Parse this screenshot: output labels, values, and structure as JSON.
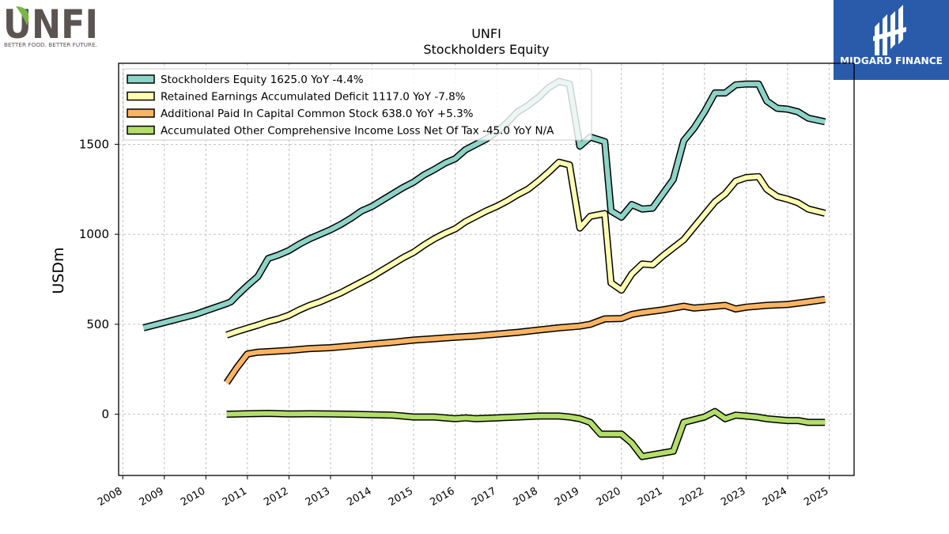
{
  "brand": {
    "left_logo_name": "UNFI",
    "left_logo_tagline": "BETTER FOOD. BETTER FUTURE.",
    "right_logo_name": "MIDGARD FINANCE",
    "colors": {
      "unfi_gray": "#5b5452",
      "unfi_green": "#7ab648",
      "midgard_blue": "#2a5bab"
    }
  },
  "chart_data": {
    "type": "line",
    "title": "UNFI",
    "subtitle": "Stockholders  Equity",
    "xlabel": "",
    "ylabel": "USDm",
    "xlim": [
      2007.9,
      2025.6
    ],
    "ylim": [
      -340,
      1950
    ],
    "x_ticks": [
      2008,
      2009,
      2010,
      2011,
      2012,
      2013,
      2014,
      2015,
      2016,
      2017,
      2018,
      2019,
      2020,
      2021,
      2022,
      2023,
      2024,
      2025
    ],
    "y_ticks": [
      0,
      500,
      1000,
      1500
    ],
    "grid": true,
    "legend_position": "top-left",
    "series": [
      {
        "name": "Stockholders Equity",
        "legend": "Stockholders Equity  1625.0 YoY -4.4%",
        "color": "#8dd3c7",
        "points": [
          [
            2008.5,
            480
          ],
          [
            2009.0,
            510
          ],
          [
            2009.5,
            540
          ],
          [
            2009.75,
            555
          ],
          [
            2010.0,
            575
          ],
          [
            2010.5,
            615
          ],
          [
            2010.6,
            625
          ],
          [
            2010.75,
            660
          ],
          [
            2011.0,
            715
          ],
          [
            2011.25,
            765
          ],
          [
            2011.5,
            865
          ],
          [
            2011.75,
            885
          ],
          [
            2012.0,
            910
          ],
          [
            2012.25,
            945
          ],
          [
            2012.5,
            975
          ],
          [
            2012.75,
            1000
          ],
          [
            2013.0,
            1025
          ],
          [
            2013.25,
            1055
          ],
          [
            2013.5,
            1090
          ],
          [
            2013.75,
            1130
          ],
          [
            2014.0,
            1155
          ],
          [
            2014.25,
            1190
          ],
          [
            2014.5,
            1225
          ],
          [
            2014.75,
            1260
          ],
          [
            2015.0,
            1290
          ],
          [
            2015.25,
            1330
          ],
          [
            2015.5,
            1360
          ],
          [
            2015.75,
            1395
          ],
          [
            2016.0,
            1420
          ],
          [
            2016.25,
            1470
          ],
          [
            2016.5,
            1500
          ],
          [
            2016.75,
            1530
          ],
          [
            2017.0,
            1570
          ],
          [
            2017.25,
            1620
          ],
          [
            2017.5,
            1680
          ],
          [
            2017.75,
            1715
          ],
          [
            2018.0,
            1760
          ],
          [
            2018.25,
            1815
          ],
          [
            2018.5,
            1850
          ],
          [
            2018.75,
            1835
          ],
          [
            2019.0,
            1490
          ],
          [
            2019.25,
            1540
          ],
          [
            2019.6,
            1515
          ],
          [
            2019.75,
            1130
          ],
          [
            2020.0,
            1095
          ],
          [
            2020.25,
            1165
          ],
          [
            2020.5,
            1140
          ],
          [
            2020.75,
            1145
          ],
          [
            2021.0,
            1225
          ],
          [
            2021.25,
            1305
          ],
          [
            2021.5,
            1520
          ],
          [
            2021.75,
            1590
          ],
          [
            2022.0,
            1680
          ],
          [
            2022.25,
            1785
          ],
          [
            2022.5,
            1785
          ],
          [
            2022.75,
            1830
          ],
          [
            2023.0,
            1835
          ],
          [
            2023.3,
            1835
          ],
          [
            2023.5,
            1740
          ],
          [
            2023.75,
            1700
          ],
          [
            2024.0,
            1695
          ],
          [
            2024.25,
            1680
          ],
          [
            2024.5,
            1645
          ],
          [
            2024.9,
            1625
          ]
        ]
      },
      {
        "name": "Retained Earnings Accumulated Deficit",
        "legend": "Retained Earnings Accumulated Deficit  1117.0 YoY -7.8%",
        "color": "#ffffb3",
        "points": [
          [
            2010.5,
            440
          ],
          [
            2010.75,
            460
          ],
          [
            2011.0,
            478
          ],
          [
            2011.25,
            495
          ],
          [
            2011.5,
            515
          ],
          [
            2011.75,
            530
          ],
          [
            2012.0,
            550
          ],
          [
            2012.25,
            580
          ],
          [
            2012.5,
            605
          ],
          [
            2012.75,
            625
          ],
          [
            2013.0,
            650
          ],
          [
            2013.25,
            675
          ],
          [
            2013.5,
            705
          ],
          [
            2013.75,
            735
          ],
          [
            2014.0,
            765
          ],
          [
            2014.25,
            800
          ],
          [
            2014.5,
            835
          ],
          [
            2014.75,
            870
          ],
          [
            2015.0,
            900
          ],
          [
            2015.25,
            940
          ],
          [
            2015.5,
            975
          ],
          [
            2015.75,
            1005
          ],
          [
            2016.0,
            1030
          ],
          [
            2016.25,
            1070
          ],
          [
            2016.5,
            1100
          ],
          [
            2016.75,
            1130
          ],
          [
            2017.0,
            1155
          ],
          [
            2017.25,
            1185
          ],
          [
            2017.5,
            1220
          ],
          [
            2017.75,
            1250
          ],
          [
            2018.0,
            1295
          ],
          [
            2018.25,
            1345
          ],
          [
            2018.5,
            1400
          ],
          [
            2018.75,
            1385
          ],
          [
            2019.0,
            1035
          ],
          [
            2019.25,
            1100
          ],
          [
            2019.6,
            1115
          ],
          [
            2019.75,
            730
          ],
          [
            2020.0,
            690
          ],
          [
            2020.25,
            780
          ],
          [
            2020.5,
            835
          ],
          [
            2020.75,
            830
          ],
          [
            2021.0,
            880
          ],
          [
            2021.25,
            925
          ],
          [
            2021.5,
            970
          ],
          [
            2021.75,
            1040
          ],
          [
            2022.0,
            1110
          ],
          [
            2022.25,
            1180
          ],
          [
            2022.5,
            1225
          ],
          [
            2022.75,
            1295
          ],
          [
            2023.0,
            1315
          ],
          [
            2023.3,
            1320
          ],
          [
            2023.5,
            1250
          ],
          [
            2023.75,
            1210
          ],
          [
            2024.0,
            1195
          ],
          [
            2024.25,
            1175
          ],
          [
            2024.5,
            1140
          ],
          [
            2024.9,
            1117
          ]
        ]
      },
      {
        "name": "Additional Paid In Capital Common Stock",
        "legend": "Additional Paid In Capital Common Stock  638.0 YoY +5.3%",
        "color": "#fdb462",
        "points": [
          [
            2010.5,
            175
          ],
          [
            2010.75,
            260
          ],
          [
            2011.0,
            335
          ],
          [
            2011.25,
            345
          ],
          [
            2011.5,
            348
          ],
          [
            2012.0,
            355
          ],
          [
            2012.5,
            365
          ],
          [
            2013.0,
            370
          ],
          [
            2013.5,
            380
          ],
          [
            2014.0,
            390
          ],
          [
            2014.5,
            400
          ],
          [
            2015.0,
            412
          ],
          [
            2015.5,
            420
          ],
          [
            2016.0,
            428
          ],
          [
            2016.5,
            435
          ],
          [
            2017.0,
            445
          ],
          [
            2017.5,
            455
          ],
          [
            2018.0,
            468
          ],
          [
            2018.5,
            480
          ],
          [
            2019.0,
            490
          ],
          [
            2019.25,
            500
          ],
          [
            2019.6,
            530
          ],
          [
            2020.0,
            532
          ],
          [
            2020.25,
            555
          ],
          [
            2020.5,
            565
          ],
          [
            2021.0,
            580
          ],
          [
            2021.5,
            600
          ],
          [
            2021.75,
            590
          ],
          [
            2022.0,
            595
          ],
          [
            2022.25,
            600
          ],
          [
            2022.5,
            605
          ],
          [
            2022.75,
            585
          ],
          [
            2023.0,
            595
          ],
          [
            2023.5,
            605
          ],
          [
            2024.0,
            610
          ],
          [
            2024.5,
            625
          ],
          [
            2024.9,
            638
          ]
        ]
      },
      {
        "name": "Accumulated Other Comprehensive Income Loss Net Of Tax",
        "legend": "Accumulated Other Comprehensive Income Loss Net Of Tax  -45.0 YoY N/A",
        "color": "#b3de69",
        "points": [
          [
            2010.5,
            0
          ],
          [
            2011.0,
            3
          ],
          [
            2011.5,
            5
          ],
          [
            2012.0,
            2
          ],
          [
            2012.5,
            3
          ],
          [
            2013.0,
            2
          ],
          [
            2013.5,
            0
          ],
          [
            2014.0,
            -3
          ],
          [
            2014.5,
            -5
          ],
          [
            2015.0,
            -15
          ],
          [
            2015.5,
            -15
          ],
          [
            2016.0,
            -25
          ],
          [
            2016.25,
            -20
          ],
          [
            2016.5,
            -25
          ],
          [
            2017.0,
            -20
          ],
          [
            2017.5,
            -15
          ],
          [
            2018.0,
            -10
          ],
          [
            2018.5,
            -10
          ],
          [
            2018.75,
            -15
          ],
          [
            2019.0,
            -25
          ],
          [
            2019.25,
            -45
          ],
          [
            2019.5,
            -110
          ],
          [
            2019.75,
            -110
          ],
          [
            2020.0,
            -110
          ],
          [
            2020.25,
            -160
          ],
          [
            2020.5,
            -235
          ],
          [
            2020.75,
            -225
          ],
          [
            2021.0,
            -215
          ],
          [
            2021.25,
            -205
          ],
          [
            2021.5,
            -45
          ],
          [
            2021.75,
            -30
          ],
          [
            2022.0,
            -15
          ],
          [
            2022.25,
            15
          ],
          [
            2022.5,
            -25
          ],
          [
            2022.75,
            -5
          ],
          [
            2023.0,
            -10
          ],
          [
            2023.25,
            -15
          ],
          [
            2023.5,
            -25
          ],
          [
            2023.75,
            -30
          ],
          [
            2024.0,
            -35
          ],
          [
            2024.25,
            -35
          ],
          [
            2024.5,
            -45
          ],
          [
            2024.9,
            -45
          ]
        ]
      }
    ]
  }
}
